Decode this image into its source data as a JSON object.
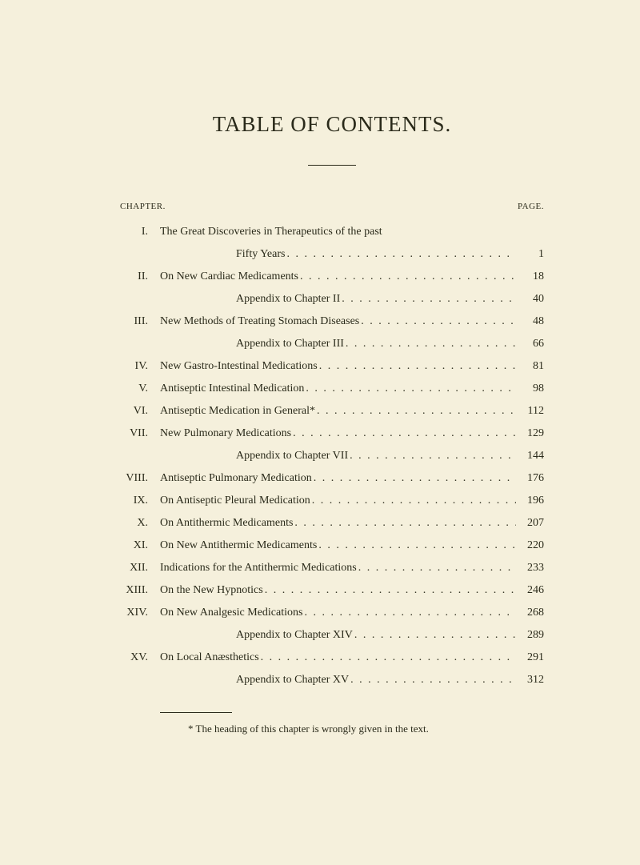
{
  "title": "TABLE OF CONTENTS.",
  "header": {
    "left": "CHAPTER.",
    "right": "PAGE."
  },
  "entries": [
    {
      "num": "I.",
      "text": "The Great Discoveries in Therapeutics of the past",
      "page": "",
      "nopage": true
    },
    {
      "num": "",
      "text": "Fifty Years",
      "page": "1",
      "indent": true
    },
    {
      "num": "II.",
      "text": "On New Cardiac Medicaments",
      "page": "18"
    },
    {
      "num": "",
      "text": "Appendix to Chapter II",
      "page": "40",
      "indent": true
    },
    {
      "num": "III.",
      "text": "New Methods of Treating Stomach Diseases",
      "page": "48"
    },
    {
      "num": "",
      "text": "Appendix to Chapter III",
      "page": "66",
      "indent": true
    },
    {
      "num": "IV.",
      "text": "New Gastro-Intestinal Medications",
      "page": "81"
    },
    {
      "num": "V.",
      "text": "Antiseptic Intestinal Medication",
      "page": "98"
    },
    {
      "num": "VI.",
      "text": "Antiseptic Medication in General*",
      "page": "112"
    },
    {
      "num": "VII.",
      "text": "New Pulmonary Medications",
      "page": "129"
    },
    {
      "num": "",
      "text": "Appendix to Chapter VII",
      "page": "144",
      "indent": true
    },
    {
      "num": "VIII.",
      "text": "Antiseptic Pulmonary Medication",
      "page": "176"
    },
    {
      "num": "IX.",
      "text": "On Antiseptic Pleural Medication",
      "page": "196"
    },
    {
      "num": "X.",
      "text": "On Antithermic Medicaments",
      "page": "207"
    },
    {
      "num": "XI.",
      "text": "On New Antithermic Medicaments",
      "page": "220"
    },
    {
      "num": "XII.",
      "text": "Indications for the Antithermic Medications",
      "page": "233"
    },
    {
      "num": "XIII.",
      "text": "On the New Hypnotics",
      "page": "246"
    },
    {
      "num": "XIV.",
      "text": "On New Analgesic Medications",
      "page": "268"
    },
    {
      "num": "",
      "text": "Appendix to Chapter XIV",
      "page": "289",
      "indent": true
    },
    {
      "num": "XV.",
      "text": "On Local Anæsthetics",
      "page": "291"
    },
    {
      "num": "",
      "text": "Appendix to Chapter XV",
      "page": "312",
      "indent": true
    }
  ],
  "footnote": "* The heading of this chapter is wrongly given in the text."
}
